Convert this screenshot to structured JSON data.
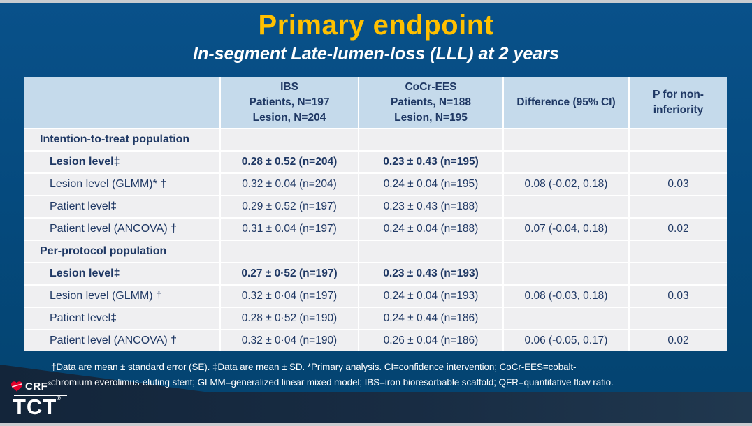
{
  "slide": {
    "title": "Primary endpoint",
    "subtitle": "In-segment Late-lumen-loss (LLL) at 2 years"
  },
  "colors": {
    "background_blue": "#054A7E",
    "title_yellow": "#FFC000",
    "header_cell_blue": "#C5DAEB",
    "row_gray": "#EFEFF1",
    "table_text_navy": "#1F3864",
    "bottom_band_navy": "#16283C",
    "logo_heart_red": "#E4002B",
    "footnote_white": "#FFFFFF"
  },
  "table": {
    "headers": [
      "",
      "IBS\nPatients, N=197\nLesion, N=204",
      "CoCr-EES\nPatients, N=188\nLesion, N=195",
      "Difference (95% CI)",
      "P for non-\ninferiority"
    ],
    "rows": [
      {
        "label": "Intention-to-treat population",
        "style": "section",
        "values": [
          "",
          "",
          "",
          ""
        ]
      },
      {
        "label": "Lesion level‡",
        "style": "bold",
        "values": [
          "0.28 ± 0.52 (n=204)",
          "0.23 ± 0.43 (n=195)",
          "",
          ""
        ]
      },
      {
        "label": "Lesion level (GLMM)* †",
        "style": "normal",
        "values": [
          "0.32 ± 0.04 (n=204)",
          "0.24 ± 0.04 (n=195)",
          "0.08 (-0.02, 0.18)",
          "0.03"
        ]
      },
      {
        "label": "Patient level‡",
        "style": "normal",
        "values": [
          "0.29 ± 0.52 (n=197)",
          "0.23 ± 0.43 (n=188)",
          "",
          ""
        ]
      },
      {
        "label": "Patient level (ANCOVA) †",
        "style": "normal",
        "values": [
          "0.31 ± 0.04 (n=197)",
          "0.24 ± 0.04 (n=188)",
          "0.07 (-0.04, 0.18)",
          "0.02"
        ]
      },
      {
        "label": "Per-protocol population",
        "style": "section",
        "values": [
          "",
          "",
          "",
          ""
        ]
      },
      {
        "label": "Lesion level‡",
        "style": "bold",
        "values": [
          "0.27 ± 0·52 (n=197)",
          "0.23 ± 0.43 (n=193)",
          "",
          ""
        ]
      },
      {
        "label": "Lesion level (GLMM) †",
        "style": "normal",
        "values": [
          "0.32 ± 0·04 (n=197)",
          "0.24 ± 0.04 (n=193)",
          "0.08 (-0.03, 0.18)",
          "0.03"
        ]
      },
      {
        "label": "Patient level‡",
        "style": "normal",
        "values": [
          "0.28 ± 0·52 (n=190)",
          "0.24 ± 0.44 (n=186)",
          "",
          ""
        ]
      },
      {
        "label": "Patient level (ANCOVA) †",
        "style": "normal",
        "values": [
          "0.32 ± 0·04 (n=190)",
          "0.26 ± 0.04 (n=186)",
          "0.06 (-0.05, 0.17)",
          "0.02"
        ]
      }
    ]
  },
  "footnote": {
    "text": "†Data are mean ± standard error (SE). ‡Data are mean ± SD. *Primary analysis. CI=confidence intervention; CoCr-EES=cobalt-\nchromium everolimus-eluting stent; GLMM=generalized linear mixed model; IBS=iron bioresorbable scaffold; QFR=quantitative flow ratio."
  },
  "logo": {
    "crf": "CRF",
    "tct": "TCT",
    "reg": "®",
    "heart_icon": "heart-icon"
  }
}
